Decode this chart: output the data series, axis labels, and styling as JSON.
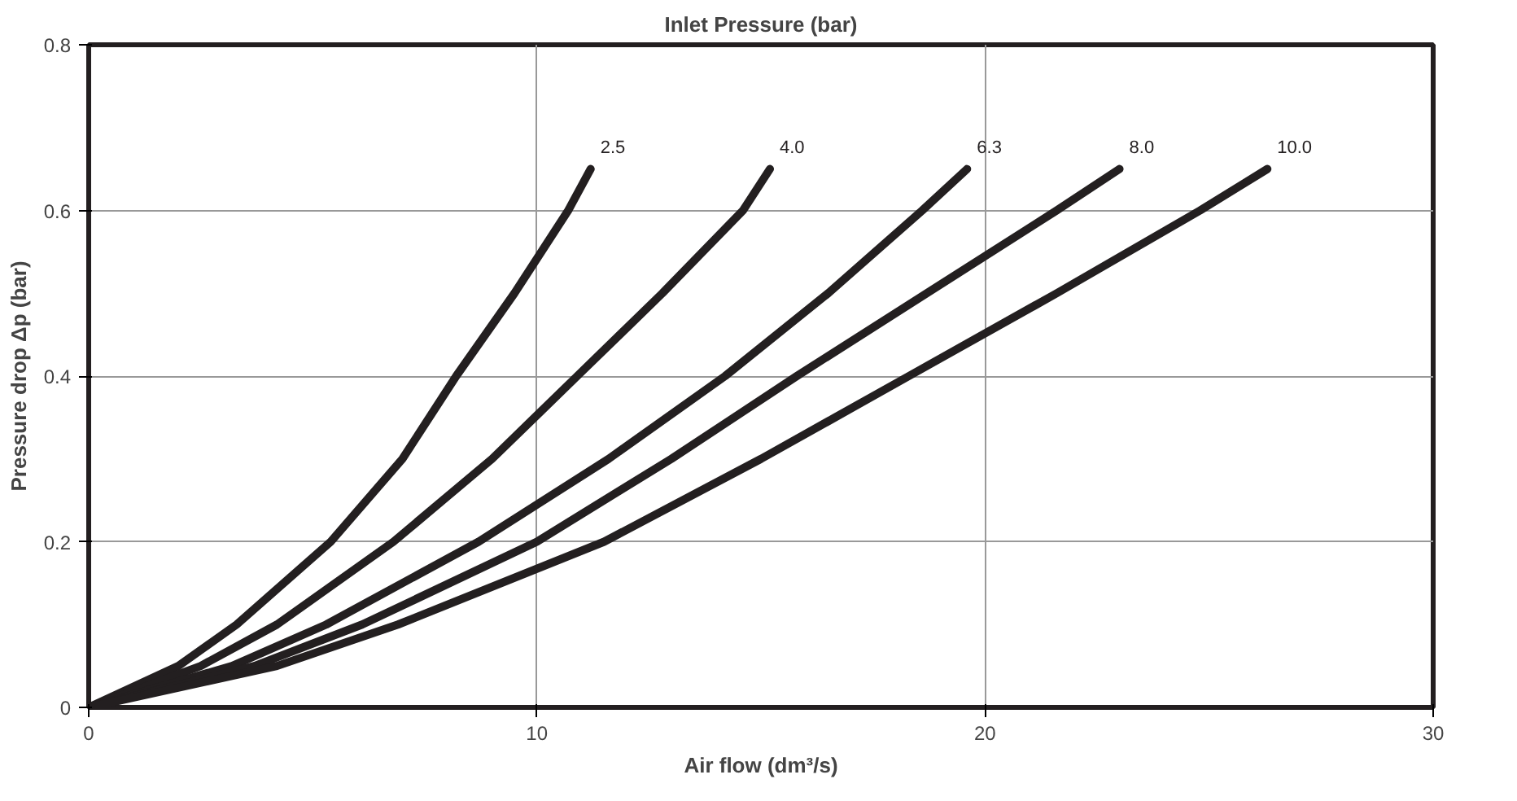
{
  "chart_data": {
    "type": "line",
    "title": "Inlet Pressure (bar)",
    "xlabel": "Air flow (dm³/s)",
    "ylabel": "Pressure drop Δp (bar)",
    "xlim": [
      0,
      30
    ],
    "ylim": [
      0,
      0.8
    ],
    "xticks": [
      0,
      10,
      20,
      30
    ],
    "yticks": [
      0,
      0.2,
      0.4,
      0.6,
      0.8
    ],
    "grid": true,
    "line_style": "solid",
    "series": [
      {
        "name": "2.5",
        "color": "#231f20",
        "x": [
          0,
          2.0,
          3.3,
          5.4,
          7.0,
          8.2,
          9.5,
          10.7,
          11.2
        ],
        "values": [
          0,
          0.05,
          0.1,
          0.2,
          0.3,
          0.4,
          0.5,
          0.6,
          0.65
        ]
      },
      {
        "name": "4.0",
        "color": "#231f20",
        "x": [
          0,
          2.5,
          4.2,
          6.8,
          9.0,
          10.9,
          12.8,
          14.6,
          15.2
        ],
        "values": [
          0,
          0.05,
          0.1,
          0.2,
          0.3,
          0.4,
          0.5,
          0.6,
          0.65
        ]
      },
      {
        "name": "6.3",
        "color": "#231f20",
        "x": [
          0,
          3.2,
          5.3,
          8.7,
          11.6,
          14.2,
          16.5,
          18.6,
          19.6
        ],
        "values": [
          0,
          0.05,
          0.1,
          0.2,
          0.3,
          0.4,
          0.5,
          0.6,
          0.65
        ]
      },
      {
        "name": "8.0",
        "color": "#231f20",
        "x": [
          0,
          3.7,
          6.1,
          10.0,
          13.0,
          15.8,
          18.7,
          21.6,
          23.0
        ],
        "values": [
          0,
          0.05,
          0.1,
          0.2,
          0.3,
          0.4,
          0.5,
          0.6,
          0.65
        ]
      },
      {
        "name": "10.0",
        "color": "#231f20",
        "x": [
          0,
          4.2,
          6.9,
          11.5,
          15.0,
          18.3,
          21.6,
          24.8,
          26.3
        ],
        "values": [
          0,
          0.05,
          0.1,
          0.2,
          0.3,
          0.4,
          0.5,
          0.6,
          0.65
        ]
      }
    ]
  }
}
